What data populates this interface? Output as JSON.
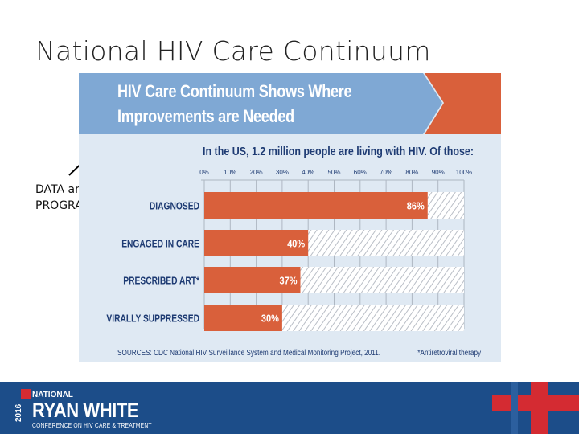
{
  "slide": {
    "title": "National HIV Care Continuum",
    "callout": [
      "DATA and",
      "PROGRAM"
    ]
  },
  "figure": {
    "banner": [
      "HIV Care Continuum Shows Where",
      "Improvements are Needed"
    ],
    "subtitle": "In the US, 1.2 million people are living with HIV.  Of those:",
    "sources": "SOURCES: CDC National HIV Surveillance System and Medical Monitoring Project, 2011.",
    "footnote": "*Antiretroviral therapy"
  },
  "chart_data": {
    "type": "bar",
    "orientation": "horizontal",
    "categories": [
      "DIAGNOSED",
      "ENGAGED IN CARE",
      "PRESCRIBED ART*",
      "VIRALLY SUPPRESSED"
    ],
    "values": [
      86,
      40,
      37,
      30
    ],
    "value_labels": [
      "86%",
      "40%",
      "37%",
      "30%"
    ],
    "xlim": [
      0,
      100
    ],
    "x_ticks": [
      "0%",
      "10%",
      "20%",
      "30%",
      "40%",
      "50%",
      "60%",
      "70%",
      "80%",
      "90%",
      "100%"
    ],
    "grid": true,
    "colors": {
      "bar": "#d9603b",
      "remainder_hatch": "#c9cdd3",
      "text": "#1e3b73"
    }
  },
  "footer": {
    "logo_national": "NATIONAL",
    "logo_main": "RYAN WHITE",
    "logo_sub": "CONFERENCE ON HIV CARE & TREATMENT",
    "logo_year": "2016",
    "colors": {
      "bg": "#1c4d89",
      "accent": "#d42b32"
    }
  }
}
